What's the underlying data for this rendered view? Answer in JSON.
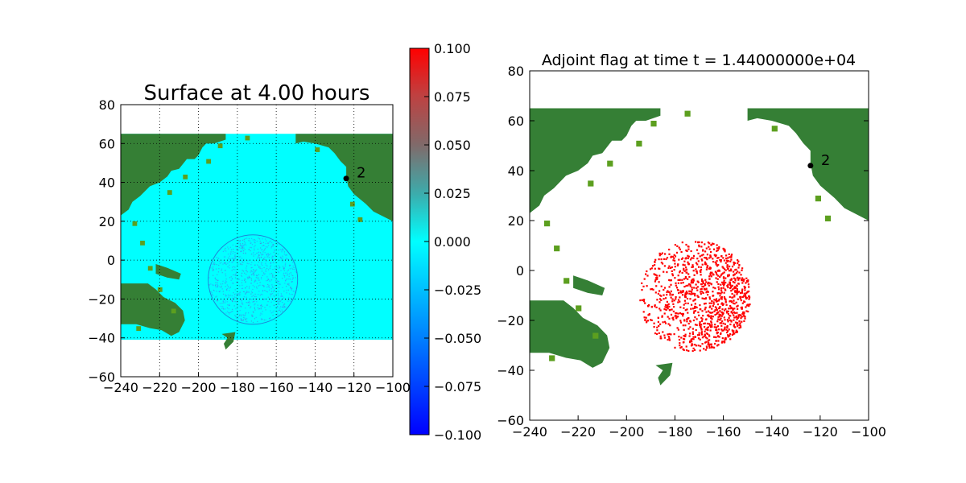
{
  "chart_data": [
    {
      "type": "heatmap",
      "title": "Surface at 4.00 hours",
      "xlabel": "",
      "ylabel": "",
      "xlim": [
        -240,
        -100
      ],
      "ylim": [
        -60,
        80
      ],
      "x_ticks": [
        -240,
        -220,
        -200,
        -180,
        -160,
        -140,
        -120,
        -100
      ],
      "y_ticks": [
        -60,
        -40,
        -20,
        0,
        20,
        40,
        60,
        80
      ],
      "x_tick_labels": [
        "−240",
        "−220",
        "−200",
        "−180",
        "−160",
        "−140",
        "−120",
        "−100"
      ],
      "y_tick_labels": [
        "−60",
        "−40",
        "−20",
        "0",
        "20",
        "40",
        "60",
        "80"
      ],
      "grid": true,
      "domain_extent": {
        "x": [
          -240,
          -100
        ],
        "y": [
          -41,
          65
        ]
      },
      "water_color": "#00ffff",
      "land_color": "#357f35",
      "shore_color": "#5c9f1f",
      "gauge": {
        "label": "2",
        "x": -124,
        "y": 42
      },
      "wave_front": {
        "center_x": -172,
        "center_y": -10,
        "radius": 23
      }
    },
    {
      "type": "heatmap",
      "title": "Adjoint flag at time t = 1.44000000e+04",
      "xlabel": "",
      "ylabel": "",
      "xlim": [
        -240,
        -100
      ],
      "ylim": [
        -60,
        80
      ],
      "x_ticks": [
        -240,
        -220,
        -200,
        -180,
        -160,
        -140,
        -120,
        -100
      ],
      "y_ticks": [
        -60,
        -40,
        -20,
        0,
        20,
        40,
        60,
        80
      ],
      "x_tick_labels": [
        "−240",
        "−220",
        "−200",
        "−180",
        "−160",
        "−140",
        "−120",
        "−100"
      ],
      "y_tick_labels": [
        "−60",
        "−40",
        "−20",
        "0",
        "20",
        "40",
        "60",
        "80"
      ],
      "grid": false,
      "flag_color": "#ff0000",
      "land_color": "#357f35",
      "gauge": {
        "label": "2",
        "x": -124,
        "y": 42
      },
      "flagged_region": {
        "center_x": -172,
        "center_y": -10,
        "radius": 23
      }
    }
  ],
  "colorbar": {
    "ticks": [
      0.1,
      0.075,
      0.05,
      0.025,
      0.0,
      -0.025,
      -0.05,
      -0.075,
      -0.1
    ],
    "tick_labels": [
      "0.100",
      "0.075",
      "0.050",
      "0.025",
      "0.000",
      "−0.025",
      "−0.050",
      "−0.075",
      "−0.100"
    ],
    "vmin": -0.1,
    "vmax": 0.1,
    "colors": [
      "#0000ff",
      "#00ffff",
      "#ff0000"
    ]
  }
}
